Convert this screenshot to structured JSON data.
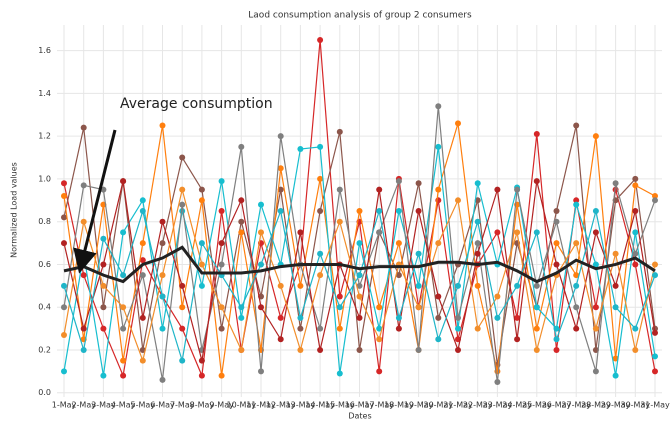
{
  "chart_data": {
    "type": "line",
    "title": "Laod consumption analysis of group 2 consumers",
    "x_label": "Dates",
    "y_label": "Normalized Load values",
    "annotation": "Average consumption",
    "categories": [
      "1-May",
      "2-May",
      "3-May",
      "4-May",
      "5-May",
      "6-May",
      "7-May",
      "8-May",
      "9-May",
      "10-May",
      "11-May",
      "12-May",
      "13-May",
      "14-May",
      "15-May",
      "16-May",
      "17-May",
      "18-May",
      "19-May",
      "20-May",
      "21-May",
      "22-May",
      "23-May",
      "24-May",
      "25-May",
      "26-May",
      "27-May",
      "28-May",
      "29-May",
      "30-May",
      "31-May"
    ],
    "ylim": [
      -0.02,
      1.72
    ],
    "yticks": [
      {
        "value": 0,
        "label": "0.0"
      },
      0.2,
      0.4,
      0.6,
      0.8,
      {
        "value": 1,
        "label": "1.0"
      },
      1.2,
      1.4,
      1.6
    ],
    "grid": true,
    "series": [
      {
        "color": "#d62728",
        "values": [
          0.98,
          0.55,
          0.3,
          0.08,
          0.62,
          0.45,
          0.3,
          0.08,
          0.85,
          0.2,
          0.7,
          0.35,
          0.6,
          1.65,
          0.45,
          0.8,
          0.1,
          1.0,
          0.4,
          0.9,
          0.25,
          0.6,
          0.75,
          0.35,
          1.21,
          0.2,
          0.9,
          0.4,
          0.95,
          0.6,
          0.1
        ]
      },
      {
        "color": "#8c564b",
        "values": [
          0.82,
          1.24,
          0.4,
          0.99,
          0.2,
          0.7,
          1.1,
          0.95,
          0.3,
          0.8,
          0.45,
          0.95,
          0.3,
          0.85,
          1.22,
          0.2,
          0.75,
          0.55,
          0.98,
          0.35,
          0.6,
          0.9,
          0.13,
          0.7,
          0.4,
          0.85,
          1.25,
          0.2,
          0.9,
          1.0,
          0.3
        ]
      },
      {
        "color": "#ff7f0e",
        "values": [
          0.92,
          0.25,
          0.88,
          0.15,
          0.7,
          1.25,
          0.4,
          0.9,
          0.08,
          0.75,
          0.2,
          1.05,
          0.5,
          1.0,
          0.3,
          0.85,
          0.4,
          0.7,
          0.2,
          0.95,
          1.26,
          0.5,
          0.1,
          0.88,
          0.3,
          0.7,
          0.55,
          1.2,
          0.16,
          0.97,
          0.92
        ]
      },
      {
        "color": "#17becf",
        "values": [
          0.1,
          0.65,
          0.08,
          0.75,
          0.9,
          0.3,
          0.85,
          0.5,
          0.99,
          0.35,
          0.88,
          0.6,
          1.14,
          1.15,
          0.09,
          0.7,
          0.3,
          0.85,
          0.5,
          1.15,
          0.3,
          0.98,
          0.6,
          0.96,
          0.4,
          0.3,
          0.88,
          0.6,
          0.08,
          0.75,
          0.17
        ]
      },
      {
        "color": "#7f7f7f",
        "values": [
          0.4,
          0.97,
          0.95,
          0.3,
          0.55,
          0.06,
          0.88,
          0.2,
          0.6,
          1.15,
          0.1,
          1.2,
          0.6,
          0.3,
          0.95,
          0.5,
          0.75,
          0.99,
          0.2,
          1.34,
          0.35,
          0.7,
          0.05,
          0.95,
          0.5,
          0.8,
          0.4,
          0.1,
          0.98,
          0.65,
          0.9
        ]
      },
      {
        "color": "#b22222",
        "values": [
          0.7,
          0.3,
          0.6,
          0.99,
          0.35,
          0.8,
          0.5,
          0.15,
          0.7,
          0.9,
          0.4,
          0.25,
          0.75,
          0.2,
          0.6,
          0.35,
          0.95,
          0.3,
          0.85,
          0.45,
          0.2,
          0.65,
          0.95,
          0.25,
          0.99,
          0.6,
          0.3,
          0.75,
          0.5,
          0.85,
          0.28
        ]
      },
      {
        "color": "#f28e2b",
        "values": [
          0.27,
          0.8,
          0.5,
          0.4,
          0.15,
          0.55,
          0.95,
          0.6,
          0.4,
          0.2,
          0.75,
          0.5,
          0.2,
          0.55,
          0.8,
          0.45,
          0.25,
          0.6,
          0.4,
          0.7,
          0.9,
          0.3,
          0.45,
          0.75,
          0.2,
          0.55,
          0.7,
          0.3,
          0.65,
          0.2,
          0.6
        ]
      },
      {
        "color": "#1fb5c8",
        "values": [
          0.5,
          0.2,
          0.72,
          0.55,
          0.85,
          0.45,
          0.15,
          0.7,
          0.55,
          0.4,
          0.6,
          0.85,
          0.35,
          0.65,
          0.4,
          0.55,
          0.85,
          0.35,
          0.65,
          0.25,
          0.5,
          0.8,
          0.35,
          0.5,
          0.75,
          0.25,
          0.5,
          0.85,
          0.4,
          0.3,
          0.55
        ]
      },
      {
        "color": "#222222",
        "values": [
          0.57,
          0.59,
          0.55,
          0.52,
          0.6,
          0.63,
          0.68,
          0.56,
          0.56,
          0.56,
          0.57,
          0.59,
          0.6,
          0.6,
          0.6,
          0.58,
          0.59,
          0.59,
          0.59,
          0.61,
          0.61,
          0.6,
          0.61,
          0.57,
          0.52,
          0.56,
          0.62,
          0.58,
          0.6,
          0.63,
          0.57
        ]
      }
    ]
  }
}
